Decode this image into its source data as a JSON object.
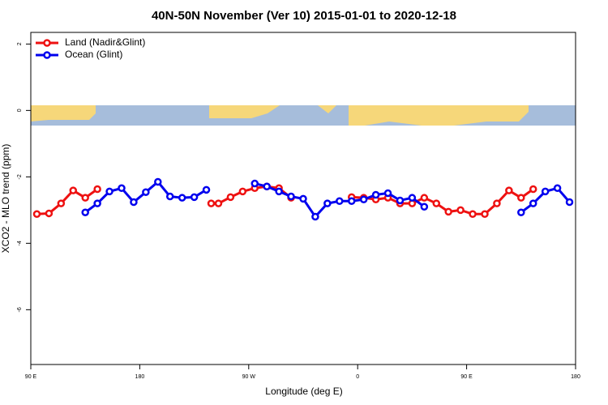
{
  "chart_data": {
    "type": "line",
    "title": "40N-50N November (Ver 10)   2015-01-01 to 2020-12-18",
    "x_label": "Longitude (deg E)",
    "y_label": "XCO2 - MLO trend (ppm)",
    "xlim": [
      90,
      540
    ],
    "xticks": [
      {
        "value": 90,
        "label": "90 E"
      },
      {
        "value": 180,
        "label": "180"
      },
      {
        "value": 270,
        "label": "90 W"
      },
      {
        "value": 360,
        "label": "0"
      },
      {
        "value": 450,
        "label": "90 E"
      },
      {
        "value": 540,
        "label": "180"
      }
    ],
    "ylim": [
      -7.65,
      2.35
    ],
    "yticks": [
      2,
      0,
      -2,
      -4,
      -6
    ],
    "legend": "top-left",
    "series": [
      {
        "name": "Land (Nadir&Glint)",
        "color": "#ee1111",
        "x": [
          95,
          105,
          115,
          125,
          135,
          145,
          null,
          239,
          245,
          255,
          265,
          275,
          285,
          295,
          305,
          null,
          355,
          365,
          375,
          385,
          395,
          405,
          415,
          425,
          435,
          445,
          455,
          465,
          475,
          485,
          495,
          505
        ],
        "values": [
          -3.12,
          -3.1,
          -2.8,
          -2.41,
          -2.63,
          -2.37,
          null,
          -2.8,
          -2.8,
          -2.61,
          -2.44,
          -2.34,
          -2.29,
          -2.34,
          -2.63,
          null,
          -2.61,
          -2.63,
          -2.68,
          -2.63,
          -2.8,
          -2.8,
          -2.63,
          -2.8,
          -3.05,
          -3.0,
          -3.12,
          -3.12,
          -2.8,
          -2.41,
          -2.63,
          -2.37
        ]
      },
      {
        "name": "Ocean (Glint)",
        "color": "#0000ee",
        "x": [
          135,
          145,
          155,
          165,
          175,
          185,
          195,
          205,
          215,
          225,
          235,
          null,
          275,
          285,
          295,
          305,
          315,
          325,
          335,
          345,
          355,
          365,
          375,
          385,
          395,
          405,
          415,
          null,
          495,
          505,
          515,
          525,
          535
        ],
        "values": [
          -3.07,
          -2.8,
          -2.44,
          -2.34,
          -2.76,
          -2.46,
          -2.15,
          -2.59,
          -2.63,
          -2.61,
          -2.39,
          null,
          -2.2,
          -2.29,
          -2.44,
          -2.59,
          -2.66,
          -3.2,
          -2.8,
          -2.73,
          -2.73,
          -2.68,
          -2.54,
          -2.49,
          -2.71,
          -2.63,
          -2.9,
          null,
          -3.07,
          -2.8,
          -2.44,
          -2.34,
          -2.76
        ]
      }
    ]
  }
}
